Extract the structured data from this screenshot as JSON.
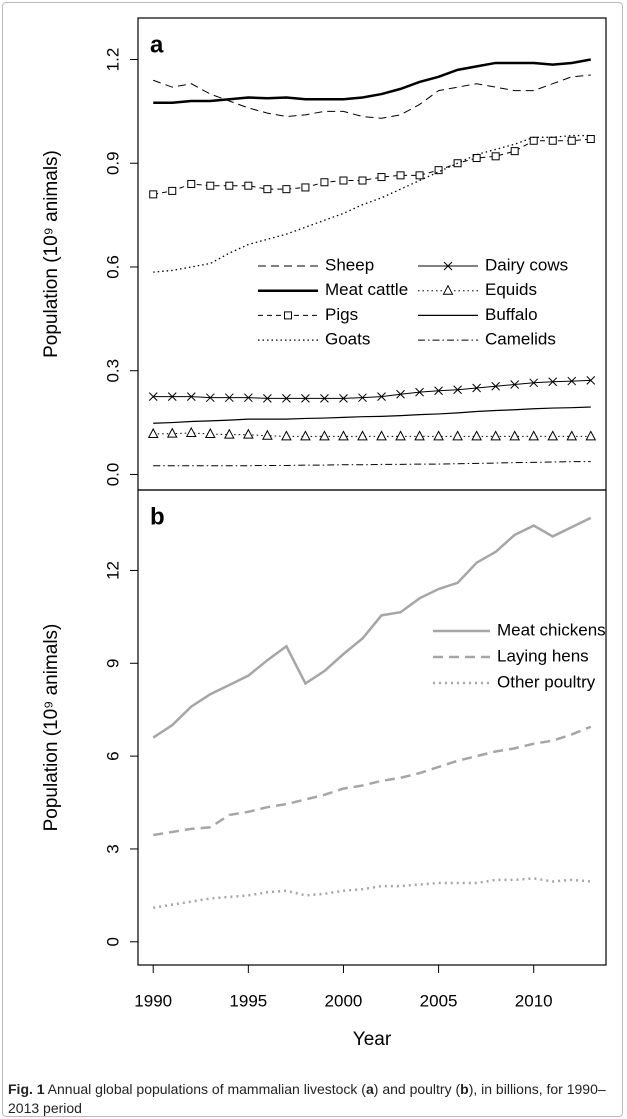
{
  "chart_data": [
    {
      "type": "line",
      "label": "a",
      "y_label": "Population (10⁹ animals)",
      "x": [
        1990,
        1991,
        1992,
        1993,
        1994,
        1995,
        1996,
        1997,
        1998,
        1999,
        2000,
        2001,
        2002,
        2003,
        2004,
        2005,
        2006,
        2007,
        2008,
        2009,
        2010,
        2011,
        2012,
        2013
      ],
      "xlim": [
        1989.2,
        2013.8
      ],
      "ylim": [
        -0.045,
        1.32
      ],
      "yticks": [
        {
          "value": 0,
          "label": "0.0"
        },
        0.3,
        0.6,
        0.9,
        1.2
      ],
      "legend_columns": 2,
      "series": [
        {
          "name": "Sheep",
          "color": "#000000",
          "dash": "8,5",
          "width": 1,
          "values": [
            1.14,
            1.12,
            1.13,
            1.1,
            1.08,
            1.06,
            1.045,
            1.035,
            1.04,
            1.05,
            1.05,
            1.035,
            1.03,
            1.04,
            1.07,
            1.11,
            1.12,
            1.13,
            1.12,
            1.11,
            1.11,
            1.13,
            1.15,
            1.155
          ]
        },
        {
          "name": "Meat cattle",
          "color": "#000000",
          "width": 2.5,
          "values": [
            1.075,
            1.075,
            1.08,
            1.08,
            1.085,
            1.09,
            1.088,
            1.09,
            1.085,
            1.085,
            1.085,
            1.09,
            1.1,
            1.115,
            1.135,
            1.15,
            1.17,
            1.18,
            1.19,
            1.19,
            1.19,
            1.185,
            1.19,
            1.2
          ]
        },
        {
          "name": "Pigs",
          "color": "#000000",
          "dash": "5,4",
          "width": 1,
          "marker": "square",
          "values": [
            0.81,
            0.82,
            0.84,
            0.835,
            0.835,
            0.835,
            0.825,
            0.825,
            0.83,
            0.845,
            0.85,
            0.85,
            0.86,
            0.865,
            0.865,
            0.88,
            0.9,
            0.915,
            0.92,
            0.935,
            0.965,
            0.965,
            0.965,
            0.97
          ]
        },
        {
          "name": "Goats",
          "color": "#000000",
          "dash": "1.5,3",
          "width": 1.3,
          "values": [
            0.585,
            0.59,
            0.6,
            0.61,
            0.64,
            0.665,
            0.68,
            0.695,
            0.715,
            0.735,
            0.755,
            0.78,
            0.8,
            0.825,
            0.85,
            0.875,
            0.9,
            0.925,
            0.94,
            0.955,
            0.975,
            0.975,
            0.98,
            0.98
          ]
        },
        {
          "name": "Dairy cows",
          "color": "#000000",
          "width": 1,
          "marker": "cross",
          "values": [
            0.225,
            0.225,
            0.225,
            0.222,
            0.222,
            0.222,
            0.22,
            0.22,
            0.22,
            0.22,
            0.22,
            0.222,
            0.225,
            0.232,
            0.238,
            0.242,
            0.245,
            0.25,
            0.255,
            0.26,
            0.265,
            0.268,
            0.27,
            0.272
          ]
        },
        {
          "name": "Equids",
          "color": "#000000",
          "dash": "1.5,3",
          "width": 1,
          "marker": "triangle",
          "values": [
            0.117,
            0.118,
            0.12,
            0.117,
            0.115,
            0.115,
            0.112,
            0.11,
            0.11,
            0.11,
            0.11,
            0.11,
            0.11,
            0.11,
            0.11,
            0.11,
            0.11,
            0.11,
            0.11,
            0.11,
            0.11,
            0.11,
            0.11,
            0.11
          ]
        },
        {
          "name": "Buffalo",
          "color": "#000000",
          "width": 1.2,
          "values": [
            0.148,
            0.15,
            0.153,
            0.155,
            0.157,
            0.16,
            0.16,
            0.16,
            0.162,
            0.163,
            0.165,
            0.167,
            0.168,
            0.17,
            0.173,
            0.175,
            0.178,
            0.182,
            0.185,
            0.187,
            0.19,
            0.192,
            0.193,
            0.195
          ]
        },
        {
          "name": "Camelids",
          "color": "#000000",
          "dash": "7,3,1.5,3",
          "width": 1,
          "values": [
            0.025,
            0.025,
            0.025,
            0.025,
            0.025,
            0.025,
            0.026,
            0.026,
            0.027,
            0.027,
            0.028,
            0.028,
            0.029,
            0.029,
            0.03,
            0.03,
            0.031,
            0.032,
            0.033,
            0.034,
            0.035,
            0.036,
            0.037,
            0.037
          ]
        }
      ]
    },
    {
      "type": "line",
      "label": "b",
      "y_label": "Population (10⁹ animals)",
      "x_label": "Year",
      "x": [
        1990,
        1991,
        1992,
        1993,
        1994,
        1995,
        1996,
        1997,
        1998,
        1999,
        2000,
        2001,
        2002,
        2003,
        2004,
        2005,
        2006,
        2007,
        2008,
        2009,
        2010,
        2011,
        2012,
        2013
      ],
      "xlim": [
        1989.2,
        2013.8
      ],
      "xticks": [
        1990,
        1995,
        2000,
        2005,
        2010
      ],
      "ylim": [
        -0.75,
        14.6
      ],
      "yticks": [
        0,
        3,
        6,
        9,
        12
      ],
      "legend_columns": 1,
      "series": [
        {
          "name": "Meat chickens",
          "color": "#a6a6a6",
          "width": 2.5,
          "values": [
            6.6,
            7.0,
            7.6,
            8.0,
            8.3,
            8.6,
            9.1,
            9.55,
            8.35,
            8.75,
            9.3,
            9.8,
            10.55,
            10.65,
            11.1,
            11.4,
            11.6,
            12.25,
            12.6,
            13.15,
            13.45,
            13.1,
            13.4,
            13.7
          ]
        },
        {
          "name": "Laying hens",
          "color": "#a6a6a6",
          "dash": "10,6",
          "width": 2.5,
          "values": [
            3.45,
            3.55,
            3.65,
            3.7,
            4.1,
            4.2,
            4.35,
            4.45,
            4.6,
            4.75,
            4.95,
            5.05,
            5.2,
            5.3,
            5.45,
            5.65,
            5.85,
            6.0,
            6.15,
            6.25,
            6.4,
            6.5,
            6.7,
            6.95
          ]
        },
        {
          "name": "Other poultry",
          "color": "#a6a6a6",
          "dash": "2,4",
          "width": 2.5,
          "values": [
            1.1,
            1.2,
            1.3,
            1.4,
            1.45,
            1.5,
            1.6,
            1.65,
            1.5,
            1.55,
            1.65,
            1.7,
            1.8,
            1.8,
            1.85,
            1.9,
            1.9,
            1.9,
            2.0,
            2.0,
            2.05,
            1.95,
            2.0,
            1.95
          ]
        }
      ]
    }
  ],
  "caption": {
    "label": "Fig. 1",
    "parts": [
      " Annual global populations of mammalian livestock (",
      "a",
      ") and poultry (",
      "b",
      "), in billions, for 1990–2013 period"
    ]
  }
}
